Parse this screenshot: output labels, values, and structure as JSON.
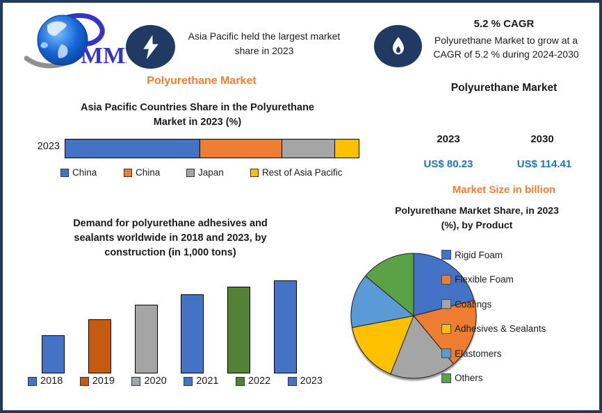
{
  "page": {
    "background": "#ffffff",
    "border_color": "#223A5E"
  },
  "logo": {
    "text": "MMR",
    "text_color": "#3434C9"
  },
  "badges": {
    "lightning": {
      "icon": "lightning-bolt",
      "color": "#203A64"
    },
    "flame": {
      "icon": "flame",
      "color": "#203A64"
    }
  },
  "header_left": {
    "headline": "Asia Pacific held the largest market\nshare in 2023",
    "title": "Polyurethane Market",
    "title_color": "#ED7D31"
  },
  "header_right": {
    "cagr_title": "5.2 % CAGR",
    "cagr_text": "Polyurethane Market to grow at a\nCAGR of 5.2 % during 2024-2030",
    "market_title": "Polyurethane Market"
  },
  "market_size": {
    "year_start": "2023",
    "year_end": "2030",
    "value_start": "US$ 80.23",
    "value_end": "US$ 114.41",
    "value_color": "#1B75BC",
    "caption": "Market Size in billion",
    "caption_color": "#ED7D31"
  },
  "chart_data": [
    {
      "id": "apac_share",
      "type": "bar",
      "variant": "horizontal-stacked",
      "title": "Asia Pacific Countries Share in the  Polyurethane\nMarket in 2023 (%)",
      "row_label": "2023",
      "xlim": [
        0,
        100
      ],
      "value_unit": "%",
      "legend_position": "bottom",
      "series": [
        {
          "name": "China",
          "value": 46,
          "color": "#4472C4"
        },
        {
          "name": "China",
          "value": 28,
          "color": "#ED7D31"
        },
        {
          "name": "Japan",
          "value": 18,
          "color": "#A5A5A5"
        },
        {
          "name": "Rest of Asia Pacific",
          "value": 8,
          "color": "#FFC000"
        }
      ]
    },
    {
      "id": "adhesives_demand",
      "type": "bar",
      "title": "Demand for polyurethane adhesives and\nsealants worldwide in 2018 and 2023, by\nconstruction (in 1,000 tons)",
      "categories": [
        "2018",
        "2019",
        "2020",
        "2021",
        "2022",
        "2023"
      ],
      "values": [
        41,
        58,
        74,
        85,
        93,
        100
      ],
      "values_note": "relative bar heights in % of tallest bar; value axis not labeled in source",
      "colors": [
        "#4472C4",
        "#C55A11",
        "#A5A5A5",
        "#4472C4",
        "#548235",
        "#4472C4"
      ],
      "legend_position": "bottom"
    },
    {
      "id": "product_share",
      "type": "pie",
      "title": "Polyurethane  Market Share, in 2023\n(%), by Product",
      "labels": [
        "Rigid Foam",
        "Flexible Foam",
        "Coatings",
        "Adhesives & Sealants",
        "Elastomers",
        "Others"
      ],
      "values": [
        21,
        18,
        17,
        16,
        14,
        14
      ],
      "colors": [
        "#4472C4",
        "#ED7D31",
        "#A5A5A5",
        "#FFC000",
        "#5B9BD5",
        "#5BA146"
      ],
      "legend_position": "right"
    }
  ]
}
